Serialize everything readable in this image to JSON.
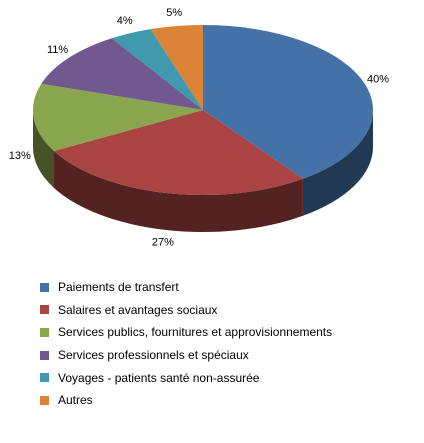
{
  "chart_data": {
    "type": "pie",
    "style": "3d",
    "legend_position": "bottom",
    "categories": [
      "Paiements de transfert",
      "Salaires et avantages sociaux",
      "Services publics, fournitures et approvisionnements",
      "Services professionnels et spéciaux",
      "Voyages - patients santé non-assurée",
      "Autres"
    ],
    "values": [
      40,
      27,
      13,
      11,
      4,
      5
    ],
    "data_labels": [
      "40%",
      "27%",
      "13%",
      "11%",
      "4%",
      "5%"
    ],
    "colors": [
      "#4472A8",
      "#AA4443",
      "#89A64E",
      "#71598F",
      "#4199AE",
      "#DB8437"
    ]
  }
}
